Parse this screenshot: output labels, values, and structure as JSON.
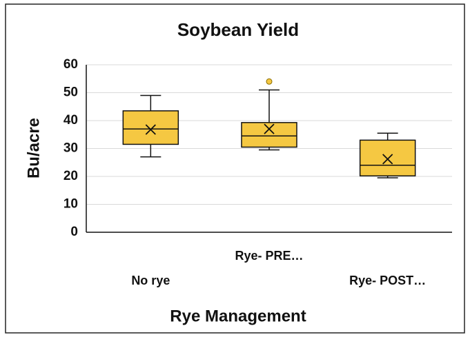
{
  "chart_data": {
    "type": "box",
    "title": "Soybean Yield",
    "x_label": "Rye Management",
    "y_label": "Bu/acre",
    "categories": [
      "No rye",
      "Rye- PRE…",
      "Rye- POST…"
    ],
    "color": "#f5c842",
    "boxes": [
      {
        "min": 27,
        "q1": 31.5,
        "median": 37,
        "q3": 43.5,
        "max": 49,
        "mean": 36.8,
        "outliers": []
      },
      {
        "min": 29.5,
        "q1": 30.5,
        "median": 34.5,
        "q3": 39.3,
        "max": 51,
        "mean": 37,
        "outliers": [
          54
        ]
      },
      {
        "min": 19.5,
        "q1": 20.2,
        "median": 24,
        "q3": 33,
        "max": 35.5,
        "mean": 26.2,
        "outliers": []
      }
    ],
    "ylim": [
      0,
      60
    ],
    "yticks": [
      0,
      10,
      20,
      30,
      40,
      50,
      60
    ],
    "grid": true
  }
}
